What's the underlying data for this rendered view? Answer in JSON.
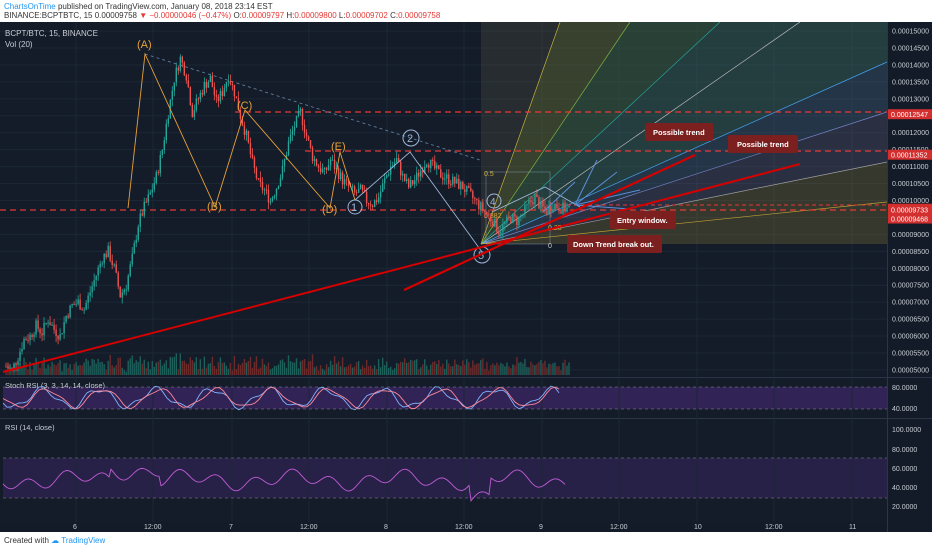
{
  "header": {
    "author": "ChartsOnTime",
    "published": "published on TradingView.com, January 08, 2018 23:14 EST",
    "symbol": "BINANCE:BCPTBTC, 15",
    "price": "0.00009758",
    "arrow": "▼",
    "change": "−0.00000046 (−0.47%)",
    "o_label": "O:",
    "o": "0.00009797",
    "h_label": "H:",
    "h": "0.00009800",
    "l_label": "L:",
    "l": "0.00009702",
    "c_label": "C:",
    "c": "0.00009758"
  },
  "footer": {
    "created_with": "Created with",
    "brand": "TradingView"
  },
  "chart_data": {
    "type": "candlestick",
    "symbol_title": "BCPT/BTC, 15, BINANCE",
    "volume_label": "Vol (20)",
    "y_ticks": [
      "0.00015000",
      "0.00014500",
      "0.00014000",
      "0.00013500",
      "0.00013000",
      "0.00012500",
      "0.00012000",
      "0.00011500",
      "0.00011000",
      "0.00010500",
      "0.00010000",
      "0.00009500",
      "0.00009000",
      "0.00008500",
      "0.00008000",
      "0.00007500",
      "0.00007000",
      "0.00006500",
      "0.00006000",
      "0.00005500",
      "0.00005000"
    ],
    "y_range": [
      4.85e-05,
      0.0001515
    ],
    "price_tags": [
      {
        "value": 0.00012547,
        "text": "0.00012547",
        "color": "#d32f2f"
      },
      {
        "value": 0.00011352,
        "text": "0.00011352",
        "color": "#d32f2f"
      },
      {
        "value": 9.758e-05,
        "text": "0.00009758",
        "color": "#d32f2f"
      },
      {
        "value": 9.57e-05,
        "text": "00:57",
        "color": "#d32f2f"
      },
      {
        "value": 9.733e-05,
        "text": "0.00009733",
        "color": "#d32f2f"
      },
      {
        "value": 9.468e-05,
        "text": "0.00009468",
        "color": "#d32f2f"
      }
    ],
    "x_ticks": [
      "6",
      "12:00",
      "7",
      "12:00",
      "8",
      "12:00",
      "9",
      "12:00",
      "10",
      "12:00",
      "11"
    ],
    "close_series": [
      5.1,
      5.0,
      5.4,
      5.9,
      6.0,
      6.3,
      6.1,
      6.5,
      6.2,
      6.0,
      6.6,
      6.9,
      7.0,
      6.8,
      7.3,
      7.8,
      8.3,
      8.5,
      8.0,
      7.2,
      7.5,
      8.3,
      9.3,
      9.8,
      10.2,
      10.7,
      11.5,
      12.6,
      13.6,
      14.2,
      13.7,
      12.6,
      13.0,
      13.4,
      13.6,
      12.9,
      13.2,
      13.7,
      13.2,
      12.5,
      11.9,
      11.1,
      10.5,
      10.3,
      10.0,
      10.4,
      10.9,
      11.7,
      12.2,
      12.6,
      11.9,
      11.3,
      11.0,
      10.8,
      11.2,
      10.9,
      10.6,
      10.4,
      10.2,
      10.3,
      10.0,
      9.9,
      10.1,
      10.6,
      11.0,
      11.2,
      10.7,
      10.4,
      10.6,
      10.9,
      11.2,
      11.0,
      10.8,
      10.7,
      10.6,
      10.5,
      10.4,
      10.2,
      10.0,
      9.8,
      9.6,
      9.4,
      9.1,
      9.3,
      9.5,
      9.4,
      9.6,
      9.9,
      10.1,
      9.8,
      9.7,
      9.9,
      9.8,
      9.76
    ],
    "close_unit": "1e-5 BTC",
    "wave_labels": [
      "(A)",
      "(B)",
      "(C)",
      "(D)",
      "(E)",
      "1",
      "2",
      "4",
      "5"
    ],
    "annotations": [
      "Possible trend",
      "Possible trend",
      "Entry window.",
      "Down Trend break out."
    ],
    "fib_labels": [
      "0.5",
      "0.382",
      "0.25",
      "0"
    ],
    "indicators": [
      {
        "name": "Stoch RSI (3, 3, 14, 14, close)",
        "ticks": [
          "80.0000",
          "40.0000"
        ]
      },
      {
        "name": "RSI (14, close)",
        "ticks": [
          "100.0000",
          "80.0000",
          "60.0000",
          "40.0000",
          "20.0000"
        ]
      }
    ],
    "colors": {
      "up": "#26a69a",
      "down": "#ef5350",
      "trend": "#d50000",
      "wave": "#e8a23a",
      "wave2": "#9fb6d8"
    }
  }
}
